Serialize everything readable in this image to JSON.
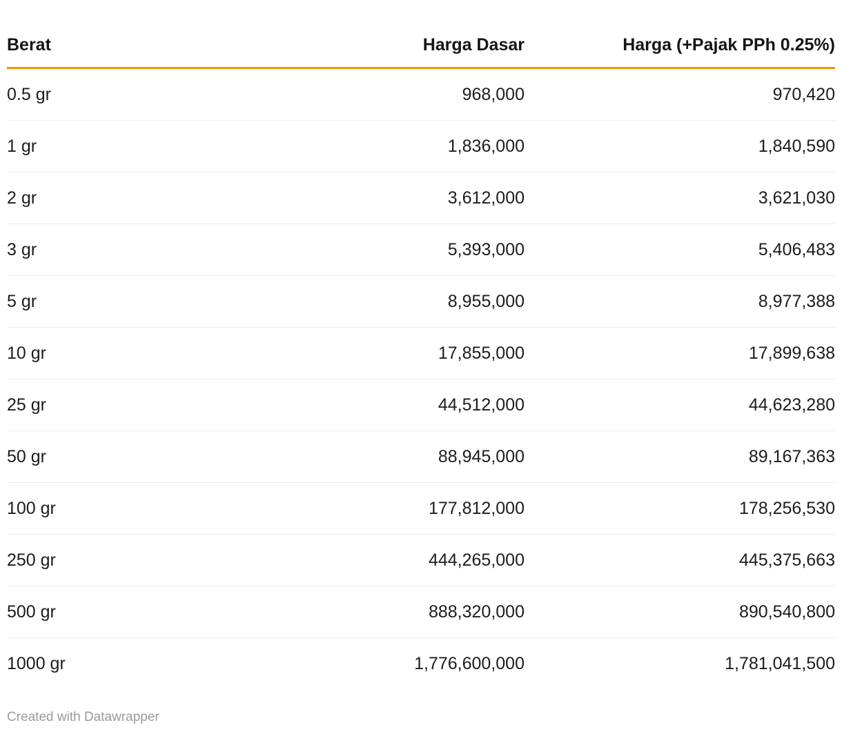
{
  "colors": {
    "accent_rule": "#F79500",
    "row_divider": "#EEEEEE",
    "header_text": "#151515",
    "body_text": "#1C1C1C",
    "footer_text": "#9A9A9A",
    "background": "#FFFFFF"
  },
  "table": {
    "columns": [
      {
        "label": "Berat",
        "align": "left"
      },
      {
        "label": "Harga Dasar",
        "align": "right"
      },
      {
        "label": "Harga (+Pajak PPh 0.25%)",
        "align": "right"
      }
    ],
    "rows": [
      [
        "0.5 gr",
        "968,000",
        "970,420"
      ],
      [
        "1 gr",
        "1,836,000",
        "1,840,590"
      ],
      [
        "2 gr",
        "3,612,000",
        "3,621,030"
      ],
      [
        "3 gr",
        "5,393,000",
        "5,406,483"
      ],
      [
        "5 gr",
        "8,955,000",
        "8,977,388"
      ],
      [
        "10 gr",
        "17,855,000",
        "17,899,638"
      ],
      [
        "25 gr",
        "44,512,000",
        "44,623,280"
      ],
      [
        "50 gr",
        "88,945,000",
        "89,167,363"
      ],
      [
        "100 gr",
        "177,812,000",
        "178,256,530"
      ],
      [
        "250 gr",
        "444,265,000",
        "445,375,663"
      ],
      [
        "500 gr",
        "888,320,000",
        "890,540,800"
      ],
      [
        "1000 gr",
        "1,776,600,000",
        "1,781,041,500"
      ]
    ]
  },
  "footer": {
    "credit": "Created with Datawrapper"
  },
  "chart_data": {
    "type": "table",
    "title": "",
    "columns": [
      "Berat",
      "Harga Dasar",
      "Harga (+Pajak PPh 0.25%)"
    ],
    "rows": [
      {
        "berat": "0.5 gr",
        "harga_dasar": 968000,
        "harga_pajak": 970420
      },
      {
        "berat": "1 gr",
        "harga_dasar": 1836000,
        "harga_pajak": 1840590
      },
      {
        "berat": "2 gr",
        "harga_dasar": 3612000,
        "harga_pajak": 3621030
      },
      {
        "berat": "3 gr",
        "harga_dasar": 5393000,
        "harga_pajak": 5406483
      },
      {
        "berat": "5 gr",
        "harga_dasar": 8955000,
        "harga_pajak": 8977388
      },
      {
        "berat": "10 gr",
        "harga_dasar": 17855000,
        "harga_pajak": 17899638
      },
      {
        "berat": "25 gr",
        "harga_dasar": 44512000,
        "harga_pajak": 44623280
      },
      {
        "berat": "50 gr",
        "harga_dasar": 88945000,
        "harga_pajak": 89167363
      },
      {
        "berat": "100 gr",
        "harga_dasar": 177812000,
        "harga_pajak": 178256530
      },
      {
        "berat": "250 gr",
        "harga_dasar": 444265000,
        "harga_pajak": 445375663
      },
      {
        "berat": "500 gr",
        "harga_dasar": 888320000,
        "harga_pajak": 890540800
      },
      {
        "berat": "1000 gr",
        "harga_dasar": 1776600000,
        "harga_pajak": 1781041500
      }
    ]
  }
}
